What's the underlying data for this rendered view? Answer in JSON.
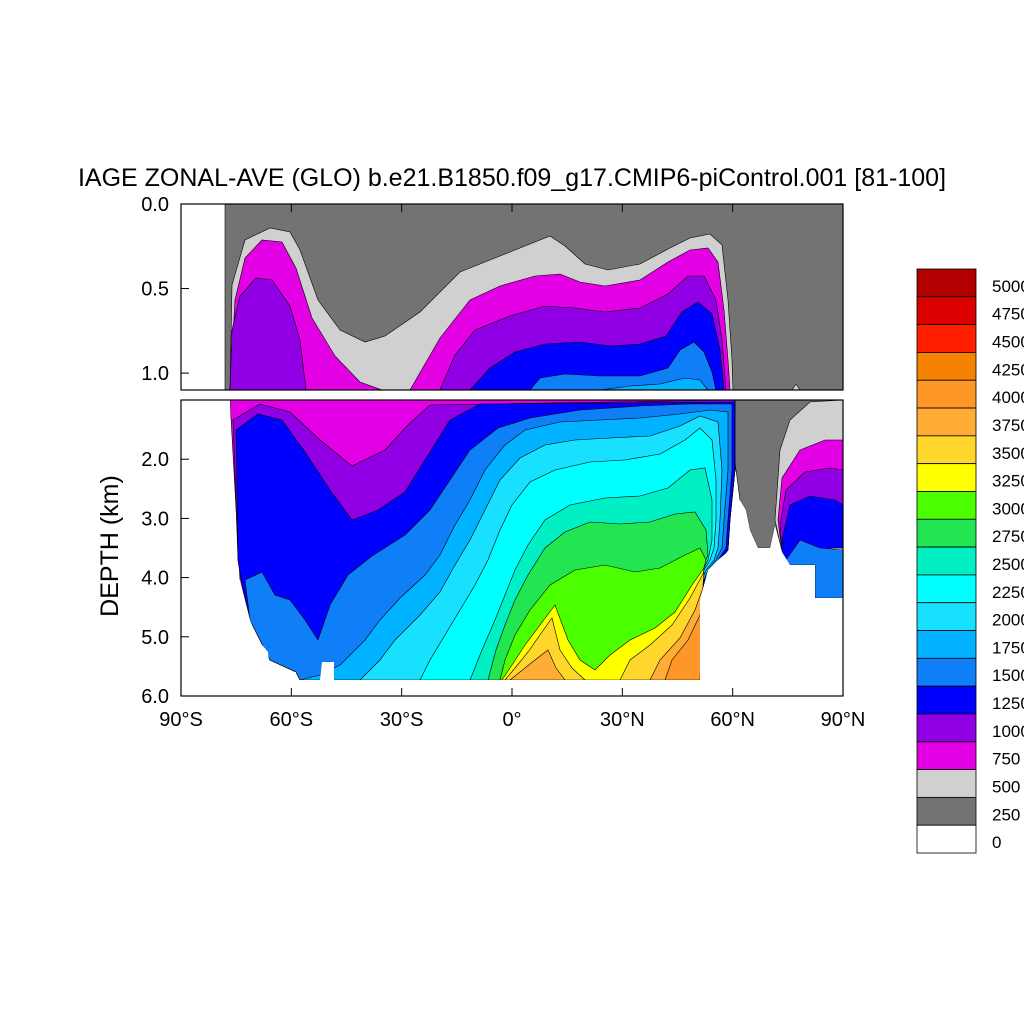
{
  "chart_data": {
    "type": "heatmap",
    "title": "IAGE ZONAL-AVE (GLO) b.e21.B1850.f09_g17.CMIP6-piControl.001 [81-100]",
    "ylabel": "DEPTH (km)",
    "xlabel": "",
    "x_ticks": [
      {
        "value": -90,
        "label": "90°S"
      },
      {
        "value": -60,
        "label": "60°S"
      },
      {
        "value": -30,
        "label": "30°S"
      },
      {
        "value": 0,
        "label": "0°"
      },
      {
        "value": 30,
        "label": "30°N"
      },
      {
        "value": 60,
        "label": "60°N"
      },
      {
        "value": 90,
        "label": "90°N"
      }
    ],
    "upper_panel": {
      "ylim": [
        0,
        1.1
      ],
      "y_ticks": [
        {
          "value": 0.0,
          "label": "0.0"
        },
        {
          "value": 0.5,
          "label": "0.5"
        },
        {
          "value": 1.0,
          "label": "1.0"
        }
      ]
    },
    "lower_panel": {
      "ylim": [
        1.0,
        6.0
      ],
      "y_ticks": [
        {
          "value": 2.0,
          "label": "2.0"
        },
        {
          "value": 3.0,
          "label": "3.0"
        },
        {
          "value": 4.0,
          "label": "4.0"
        },
        {
          "value": 5.0,
          "label": "5.0"
        },
        {
          "value": 6.0,
          "label": "6.0"
        }
      ]
    },
    "xlim": [
      -90,
      90
    ],
    "colorbar": {
      "placement": "right",
      "levels": [
        {
          "label": "0",
          "color": "#ffffff"
        },
        {
          "label": "250",
          "color": "#737373"
        },
        {
          "label": "500",
          "color": "#d0d0d0"
        },
        {
          "label": "750",
          "color": "#e400e4"
        },
        {
          "label": "1000",
          "color": "#9100e4"
        },
        {
          "label": "1250",
          "color": "#0000ff"
        },
        {
          "label": "1500",
          "color": "#0f7ff7"
        },
        {
          "label": "1750",
          "color": "#00b2ff"
        },
        {
          "label": "2000",
          "color": "#18e0ff"
        },
        {
          "label": "2250",
          "color": "#00ffff"
        },
        {
          "label": "2500",
          "color": "#00f0c4"
        },
        {
          "label": "2750",
          "color": "#22e651"
        },
        {
          "label": "3000",
          "color": "#4cff00"
        },
        {
          "label": "3250",
          "color": "#ffff00"
        },
        {
          "label": "3500",
          "color": "#ffd72c"
        },
        {
          "label": "3750",
          "color": "#ffad34"
        },
        {
          "label": "4000",
          "color": "#ff9628"
        },
        {
          "label": "4250",
          "color": "#f58200"
        },
        {
          "label": "4500",
          "color": "#ff1e00"
        },
        {
          "label": "4750",
          "color": "#dd0000"
        },
        {
          "label": "5000",
          "color": "#b20000"
        }
      ]
    }
  }
}
